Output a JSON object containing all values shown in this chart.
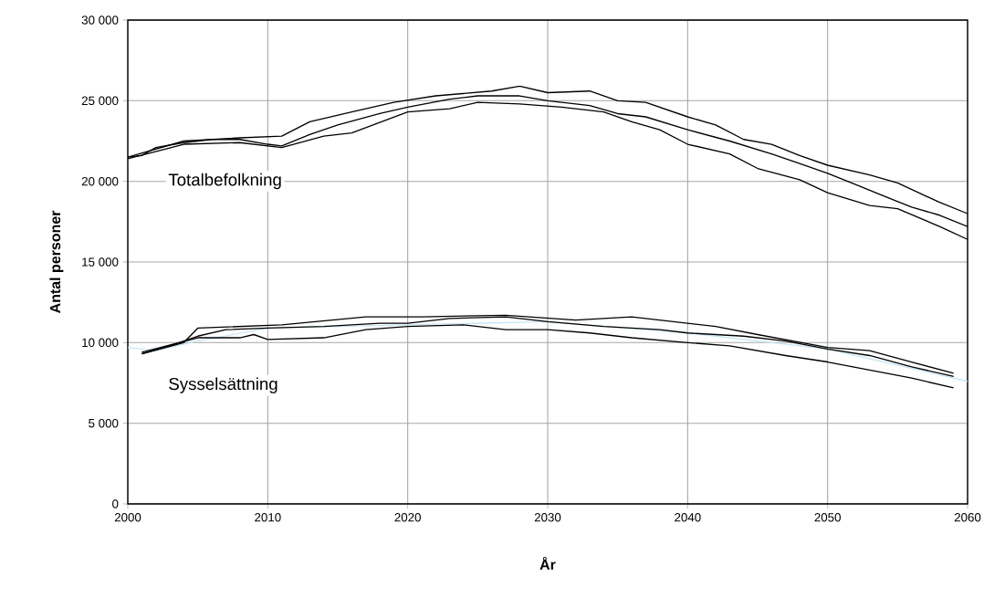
{
  "chart_data": {
    "type": "line",
    "xlabel": "År",
    "ylabel": "Antal personer",
    "xlim": [
      2000,
      2060
    ],
    "xticks": [
      2000,
      2010,
      2020,
      2030,
      2040,
      2050,
      2060
    ],
    "ylim": [
      0,
      30000
    ],
    "yticks": [
      0,
      {
        "value": 5000,
        "label": "5 000"
      },
      {
        "value": 10000,
        "label": "10 000"
      },
      {
        "value": 15000,
        "label": "15 000"
      },
      {
        "value": 20000,
        "label": "20 000"
      },
      {
        "value": 25000,
        "label": "25 000"
      },
      {
        "value": 30000,
        "label": "30 000"
      }
    ],
    "grid": true,
    "marker": "none",
    "line_style": "solid",
    "annotations": [
      "Totalbefolkning",
      "Sysselsättning"
    ],
    "series": [
      {
        "color": "#000000",
        "x": [
          2000,
          2001,
          2002,
          2004,
          2006,
          2008,
          2010,
          2011,
          2013,
          2015,
          2018,
          2020,
          2023,
          2025,
          2028,
          2030,
          2033,
          2035,
          2037,
          2040,
          2043,
          2046,
          2048,
          2050,
          2052,
          2054,
          2056,
          2058,
          2060
        ],
        "values": [
          21500,
          21600,
          22100,
          22400,
          22600,
          22600,
          22300,
          22200,
          22900,
          23500,
          24200,
          24600,
          25100,
          25300,
          25300,
          25000,
          24700,
          24200,
          24000,
          23200,
          22500,
          21700,
          21100,
          20500,
          19800,
          19100,
          18400,
          17900,
          17200
        ]
      },
      {
        "color": "#000000",
        "x": [
          2000,
          2004,
          2008,
          2011,
          2013,
          2016,
          2019,
          2022,
          2026,
          2028,
          2030,
          2033,
          2035,
          2037,
          2040,
          2042,
          2044,
          2046,
          2048,
          2050,
          2053,
          2055,
          2058,
          2060
        ],
        "values": [
          21500,
          22500,
          22700,
          22800,
          23700,
          24300,
          24900,
          25300,
          25600,
          25900,
          25500,
          25600,
          25000,
          24900,
          24000,
          23500,
          22600,
          22300,
          21600,
          21000,
          20400,
          19900,
          18700,
          18000
        ]
      },
      {
        "color": "#000000",
        "x": [
          2000,
          2004,
          2008,
          2011,
          2014,
          2016,
          2020,
          2023,
          2025,
          2028,
          2031,
          2034,
          2036,
          2038,
          2040,
          2043,
          2045,
          2048,
          2050,
          2053,
          2055,
          2058,
          2060
        ],
        "values": [
          21400,
          22300,
          22400,
          22100,
          22800,
          23000,
          24300,
          24500,
          24900,
          24800,
          24600,
          24300,
          23700,
          23200,
          22300,
          21700,
          20800,
          20100,
          19300,
          18500,
          18300,
          17200,
          16400
        ]
      },
      {
        "color": "#c8e6f5",
        "x": [
          2000,
          2002,
          2005,
          2010,
          2020,
          2030,
          2040,
          2050,
          2060
        ],
        "values": [
          9700,
          9500,
          10100,
          10900,
          11100,
          11300,
          10600,
          9600,
          7600
        ]
      },
      {
        "color": "#000000",
        "x": [
          2001,
          2003,
          2005,
          2007,
          2010,
          2014,
          2018,
          2020,
          2023,
          2027,
          2030,
          2034,
          2038,
          2040,
          2044,
          2047,
          2050,
          2053,
          2056,
          2059
        ],
        "values": [
          9300,
          9800,
          10400,
          10800,
          10900,
          11000,
          11200,
          11200,
          11500,
          11600,
          11300,
          11000,
          10800,
          10600,
          10400,
          10100,
          9600,
          9200,
          8500,
          7900
        ]
      },
      {
        "color": "#000000",
        "x": [
          2001,
          2004,
          2005,
          2008,
          2011,
          2017,
          2021,
          2027,
          2032,
          2036,
          2042,
          2045,
          2050,
          2053,
          2056,
          2059
        ],
        "values": [
          9300,
          10000,
          10900,
          11000,
          11100,
          11600,
          11600,
          11700,
          11400,
          11600,
          11000,
          10500,
          9700,
          9500,
          8800,
          8100
        ]
      },
      {
        "color": "#000000",
        "x": [
          2001,
          2005,
          2008,
          2009,
          2010,
          2014,
          2017,
          2020,
          2024,
          2027,
          2030,
          2033,
          2036,
          2040,
          2043,
          2047,
          2050,
          2053,
          2056,
          2059
        ],
        "values": [
          9400,
          10300,
          10300,
          10500,
          10200,
          10300,
          10800,
          11000,
          11100,
          10800,
          10800,
          10600,
          10300,
          10000,
          9800,
          9200,
          8800,
          8300,
          7800,
          7200
        ]
      }
    ]
  }
}
